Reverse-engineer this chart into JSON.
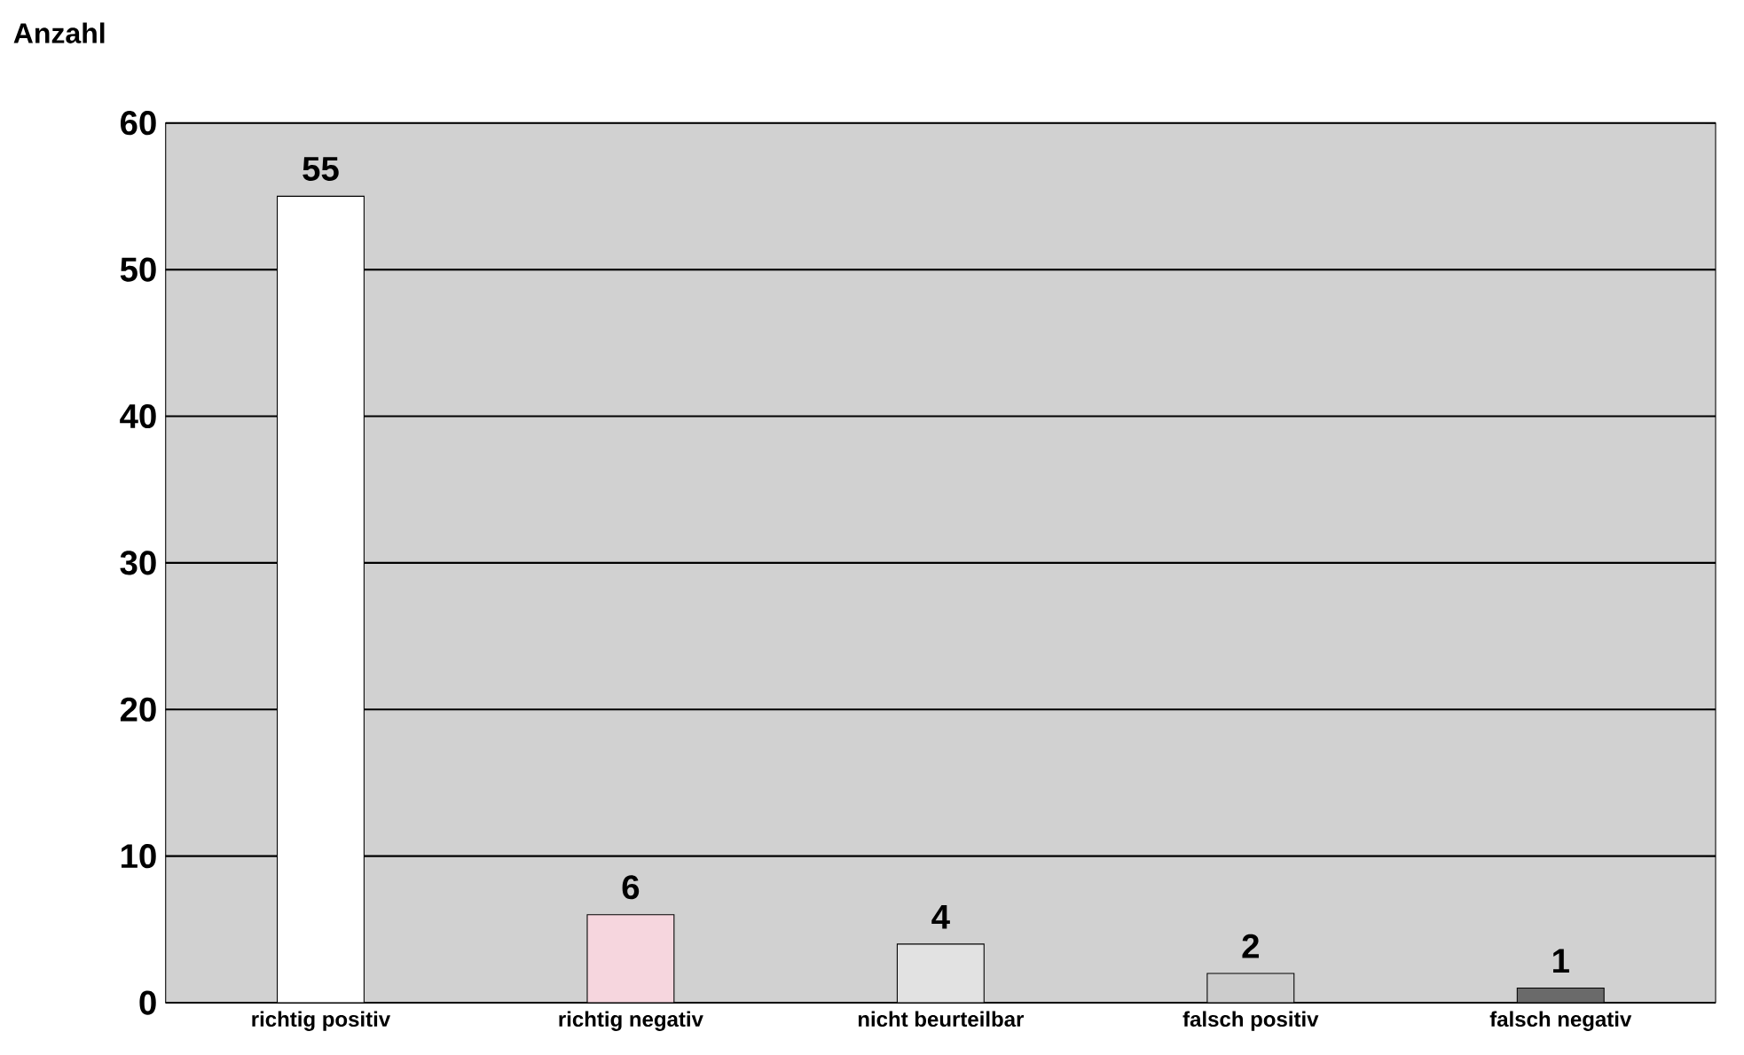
{
  "chart_data": {
    "type": "bar",
    "ylabel": "Anzahl",
    "categories": [
      "richtig positiv",
      "richtig negativ",
      "nicht beurteilbar",
      "falsch positiv",
      "falsch negativ"
    ],
    "values": [
      55,
      6,
      4,
      2,
      1
    ],
    "colors": [
      "#ffffff",
      "#f6d6de",
      "#e2e2e2",
      "#cccccc",
      "#6a6a6a"
    ],
    "ylim": [
      0,
      60
    ],
    "yticks": [
      0,
      10,
      20,
      30,
      40,
      50,
      60
    ],
    "grid": "y",
    "data_labels": true
  }
}
